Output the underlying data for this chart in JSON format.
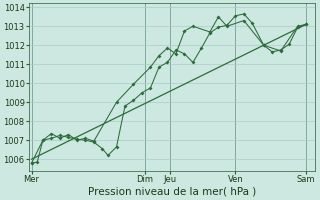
{
  "title": "",
  "xlabel": "Pression niveau de la mer( hPa )",
  "bg_color": "#cce8e0",
  "grid_color": "#aacccc",
  "line_color": "#2d6b3c",
  "dark_line_color": "#1a4a28",
  "ylim": [
    1005.4,
    1014.2
  ],
  "yticks": [
    1006,
    1007,
    1008,
    1009,
    1010,
    1011,
    1012,
    1013,
    1014
  ],
  "xtick_labels": [
    "Mer",
    "Dim",
    "Jeu",
    "Ven",
    "Sam"
  ],
  "xtick_positions": [
    0.0,
    0.4,
    0.49,
    0.72,
    0.97
  ],
  "vline_positions": [
    0.0,
    0.4,
    0.49,
    0.72,
    0.97
  ],
  "line1_x": [
    0.0,
    0.02,
    0.04,
    0.07,
    0.1,
    0.13,
    0.16,
    0.19,
    0.22,
    0.25,
    0.27,
    0.3,
    0.33,
    0.36,
    0.39,
    0.42,
    0.45,
    0.48,
    0.51,
    0.54,
    0.57,
    0.6,
    0.63,
    0.66,
    0.69,
    0.72,
    0.75,
    0.78,
    0.82,
    0.85,
    0.88,
    0.91,
    0.94,
    0.97
  ],
  "line1_y": [
    1005.8,
    1005.85,
    1007.0,
    1007.1,
    1007.25,
    1007.15,
    1007.05,
    1007.0,
    1006.9,
    1006.55,
    1006.2,
    1006.65,
    1008.8,
    1009.1,
    1009.5,
    1009.75,
    1010.85,
    1011.1,
    1011.75,
    1011.55,
    1011.1,
    1011.85,
    1012.65,
    1012.95,
    1013.05,
    1013.55,
    1013.65,
    1013.15,
    1012.0,
    1011.65,
    1011.75,
    1012.05,
    1012.95,
    1013.1
  ],
  "line2_x": [
    0.0,
    0.04,
    0.07,
    0.1,
    0.13,
    0.16,
    0.19,
    0.22,
    0.3,
    0.36,
    0.42,
    0.45,
    0.48,
    0.51,
    0.54,
    0.57,
    0.63,
    0.66,
    0.69,
    0.75,
    0.82,
    0.88,
    0.94,
    0.97
  ],
  "line2_y": [
    1005.8,
    1007.0,
    1007.35,
    1007.1,
    1007.3,
    1007.0,
    1007.1,
    1006.95,
    1009.0,
    1009.95,
    1010.85,
    1011.45,
    1011.85,
    1011.55,
    1012.75,
    1013.0,
    1012.7,
    1013.5,
    1013.0,
    1013.3,
    1012.0,
    1011.7,
    1013.0,
    1013.1
  ],
  "trend_x": [
    0.0,
    0.97
  ],
  "trend_y": [
    1006.0,
    1013.1
  ],
  "marker_size": 2.0,
  "xlabel_fontsize": 7.5,
  "tick_fontsize": 6.0
}
